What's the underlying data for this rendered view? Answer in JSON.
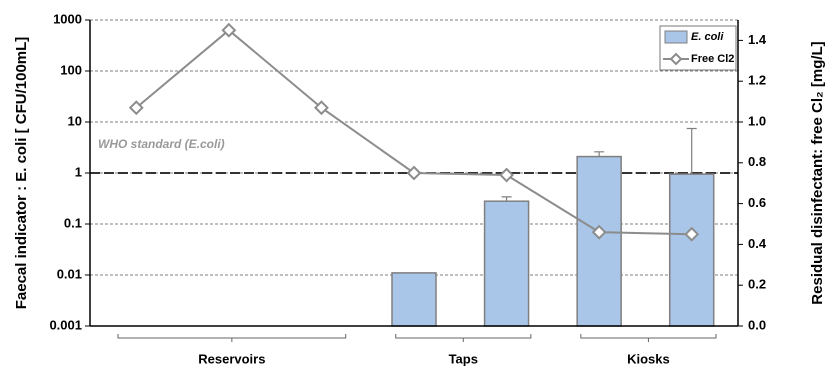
{
  "chart_data": {
    "type": "bar_line",
    "y_label": "Faecal indicator : E. coli [ CFU/100mL]",
    "y2_label": "Residual disinfectant: free Cl₂ [mg/L]",
    "categories": [
      null,
      null,
      null,
      null,
      null,
      null,
      null
    ],
    "groups": [
      "Reservoirs",
      "Taps",
      "Kiosks"
    ],
    "series": [
      {
        "name": "E. coli",
        "type": "bar",
        "color": "#a9c6e8",
        "values": [
          null,
          null,
          null,
          0.011,
          0.28,
          2.1,
          0.95
        ],
        "errors": [
          null,
          null,
          null,
          null,
          0.06,
          0.5,
          6.5
        ]
      },
      {
        "name": "Free Cl2",
        "type": "line",
        "axis": "y2",
        "color": "#8c8c8c",
        "values": [
          1.07,
          1.45,
          1.07,
          0.75,
          0.74,
          0.46,
          0.45
        ]
      }
    ],
    "reference_line": {
      "value": 1,
      "label": "WHO standard (E.coli)"
    },
    "ylog": true,
    "ylim": [
      0.001,
      1000
    ],
    "yticks": [
      0.001,
      0.01,
      0.1,
      1,
      10,
      100,
      1000
    ],
    "y2lim": [
      0,
      1.5
    ],
    "y2ticks": [
      {
        "value": 0,
        "label": "0.0"
      },
      0.2,
      0.4,
      0.6,
      0.8,
      {
        "value": 1,
        "label": "1.0"
      },
      1.2,
      1.4
    ],
    "grid": true,
    "legend": "top-right"
  }
}
